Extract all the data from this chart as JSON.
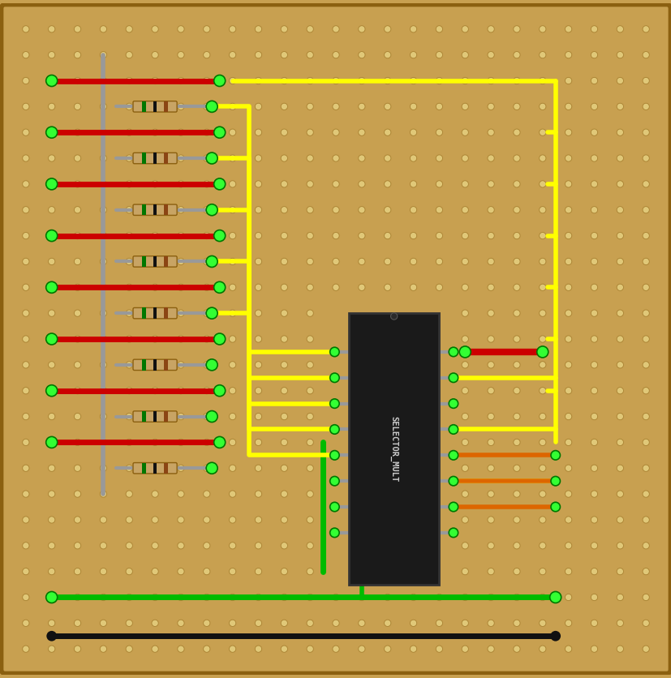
{
  "bg_color": "#C8A050",
  "board_color": "#C8A050",
  "hole_color": "#E0C878",
  "hole_outline": "#A88030",
  "board_edge": "#8B6010",
  "wire_yellow": "#ffff00",
  "wire_green": "#00bb00",
  "wire_green2": "#00dd00",
  "wire_red": "#cc0000",
  "wire_black": "#111111",
  "wire_orange": "#dd6600",
  "wire_gray": "#999999",
  "ic_color": "#1a1a1a",
  "ic_text": "SELECTOR_MULT",
  "ic_text_color": "#cccccc",
  "resistor_body_color": "#c8a464",
  "resistor_lead_color": "#aaaaaa",
  "band_green": "#007700",
  "band_black": "#111111",
  "band_brown": "#8B4513",
  "figw": 8.28,
  "figh": 8.36,
  "dpi": 100,
  "grid_cols": 26,
  "grid_rows": 26,
  "hole_r": 0.13
}
